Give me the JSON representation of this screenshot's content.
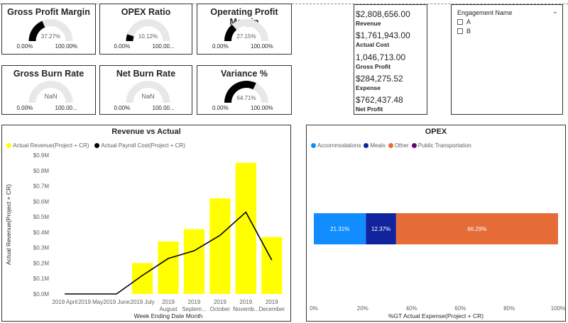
{
  "gauges": [
    {
      "title": "Gross Profit Margin",
      "value_label": "37.27%",
      "fraction": 0.3727,
      "min": "0.00%",
      "max": "100.00%"
    },
    {
      "title": "OPEX Ratio",
      "value_label": "10.12%",
      "fraction": 0.1012,
      "min": "0.00%",
      "max": "100.00..."
    },
    {
      "title": "Operating Profit Margin",
      "value_label": "27.15%",
      "fraction": 0.2715,
      "min": "0.00%",
      "max": "100.00%"
    },
    {
      "title": "Gross Burn Rate",
      "value_label": "NaN",
      "fraction": 0,
      "min": "0.00%",
      "max": "100.00..."
    },
    {
      "title": "Net Burn Rate",
      "value_label": "NaN",
      "fraction": 0,
      "min": "0.00%",
      "max": "100.00..."
    },
    {
      "title": "Variance %",
      "value_label": "64.71%",
      "fraction": 0.6471,
      "min": "0.00%",
      "max": "100.00%"
    }
  ],
  "kpis": [
    {
      "value": "$2,808,656.00",
      "label": "Revenue"
    },
    {
      "value": "$1,761,943.00",
      "label": "Actual Cost"
    },
    {
      "value": "1,046,713.00",
      "label": "Gross Profit"
    },
    {
      "value": "$284,275.52",
      "label": "Expense"
    },
    {
      "value": "$762,437.48",
      "label": "Net Profit"
    }
  ],
  "slicer": {
    "title": "Engagement Name",
    "items": [
      "A",
      "B"
    ]
  },
  "colors": {
    "gauge_fill": "#000000",
    "gauge_track": "#e8e8e8",
    "revenue_bar": "#ffff00",
    "payroll_line": "#000000",
    "accommodations": "#118dff",
    "meals": "#12239e",
    "other": "#e66c37",
    "public_transportation": "#6b007b"
  },
  "chart_data": [
    {
      "type": "bar",
      "title": "Revenue vs Actual",
      "xlabel": "Week Ending Date Month",
      "ylabel": "Actual Revenue(Project + CR)",
      "categories": [
        "2019 April",
        "2019 May",
        "2019 June",
        "2019 July",
        "2019 August",
        "2019 September",
        "2019 October",
        "2019 November",
        "2019 December"
      ],
      "category_labels": [
        [
          "2019 April"
        ],
        [
          "2019 May"
        ],
        [
          "2019 June"
        ],
        [
          "2019 July"
        ],
        [
          "2019",
          "August"
        ],
        [
          "2019",
          "Septem..."
        ],
        [
          "2019",
          "October"
        ],
        [
          "2019",
          "Novemb..."
        ],
        [
          "2019",
          "December"
        ]
      ],
      "yticks": [
        "$0.0M",
        "$0.1M",
        "$0.2M",
        "$0.3M",
        "$0.4M",
        "$0.5M",
        "$0.6M",
        "$0.7M",
        "$0.8M",
        "$0.9M"
      ],
      "ylim": [
        0,
        0.9
      ],
      "legend": [
        "Actual Revenue(Project + CR)",
        "Actual Payroll Cost(Project + CR)"
      ],
      "series": [
        {
          "name": "Actual Revenue(Project + CR)",
          "kind": "bar",
          "values": [
            0,
            0,
            0,
            0.2,
            0.34,
            0.42,
            0.62,
            0.85,
            0.37
          ]
        },
        {
          "name": "Actual Payroll Cost(Project + CR)",
          "kind": "line",
          "values": [
            0,
            0,
            0,
            0.12,
            0.23,
            0.28,
            0.38,
            0.53,
            0.22
          ]
        }
      ]
    },
    {
      "type": "bar",
      "title": "OPEX",
      "orientation": "horizontal-stacked",
      "xlabel": "%GT Actual Expense(Project + CR)",
      "xticks": [
        "0%",
        "20%",
        "40%",
        "60%",
        "80%",
        "100%"
      ],
      "xlim": [
        0,
        100
      ],
      "legend": [
        "Accommodations",
        "Meals",
        "Other",
        "Public Transportation"
      ],
      "series": [
        {
          "name": "Accommodations",
          "value": 21.31,
          "label": "21.31%"
        },
        {
          "name": "Meals",
          "value": 12.37,
          "label": "12.37%"
        },
        {
          "name": "Other",
          "value": 66.29,
          "label": "66.29%"
        },
        {
          "name": "Public Transportation",
          "value": 0.03,
          "label": ""
        }
      ]
    }
  ]
}
